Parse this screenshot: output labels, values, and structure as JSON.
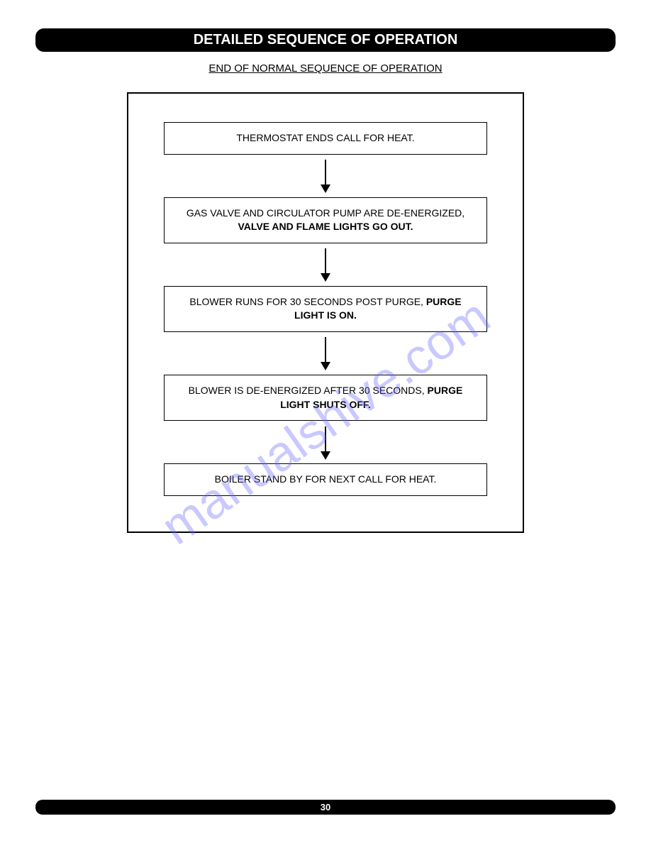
{
  "header": {
    "title": "DETAILED SEQUENCE OF OPERATION"
  },
  "subtitle": "END OF NORMAL SEQUENCE OF OPERATION",
  "flowchart": {
    "type": "flowchart",
    "container_border_color": "#000000",
    "container_border_width": 2,
    "box_border_color": "#000000",
    "box_border_width": 1,
    "box_background": "#ffffff",
    "arrow_color": "#000000",
    "font_size": 14,
    "nodes": [
      {
        "id": "n1",
        "text_plain": "THERMOSTAT ENDS CALL FOR HEAT.",
        "text_bold": ""
      },
      {
        "id": "n2",
        "text_plain": "GAS VALVE AND CIRCULATOR PUMP ARE DE-ENERGIZED, ",
        "text_bold": "VALVE AND FLAME LIGHTS GO OUT."
      },
      {
        "id": "n3",
        "text_plain": "BLOWER RUNS FOR 30 SECONDS POST PURGE, ",
        "text_bold": "PURGE LIGHT IS ON."
      },
      {
        "id": "n4",
        "text_plain": "BLOWER IS DE-ENERGIZED AFTER 30 SECONDS, ",
        "text_bold": "PURGE LIGHT SHUTS OFF."
      },
      {
        "id": "n5",
        "text_plain": "BOILER STAND BY FOR NEXT CALL FOR HEAT.",
        "text_bold": ""
      }
    ],
    "edges": [
      {
        "from": "n1",
        "to": "n2"
      },
      {
        "from": "n2",
        "to": "n3"
      },
      {
        "from": "n3",
        "to": "n4"
      },
      {
        "from": "n4",
        "to": "n5"
      }
    ]
  },
  "watermark": {
    "text": "manualshive.com",
    "color": "rgba(100, 100, 255, 0.35)",
    "angle": -35,
    "font_size": 70
  },
  "footer": {
    "page_number": "30"
  },
  "colors": {
    "header_bg": "#000000",
    "header_text": "#ffffff",
    "page_bg": "#ffffff",
    "text": "#000000"
  }
}
